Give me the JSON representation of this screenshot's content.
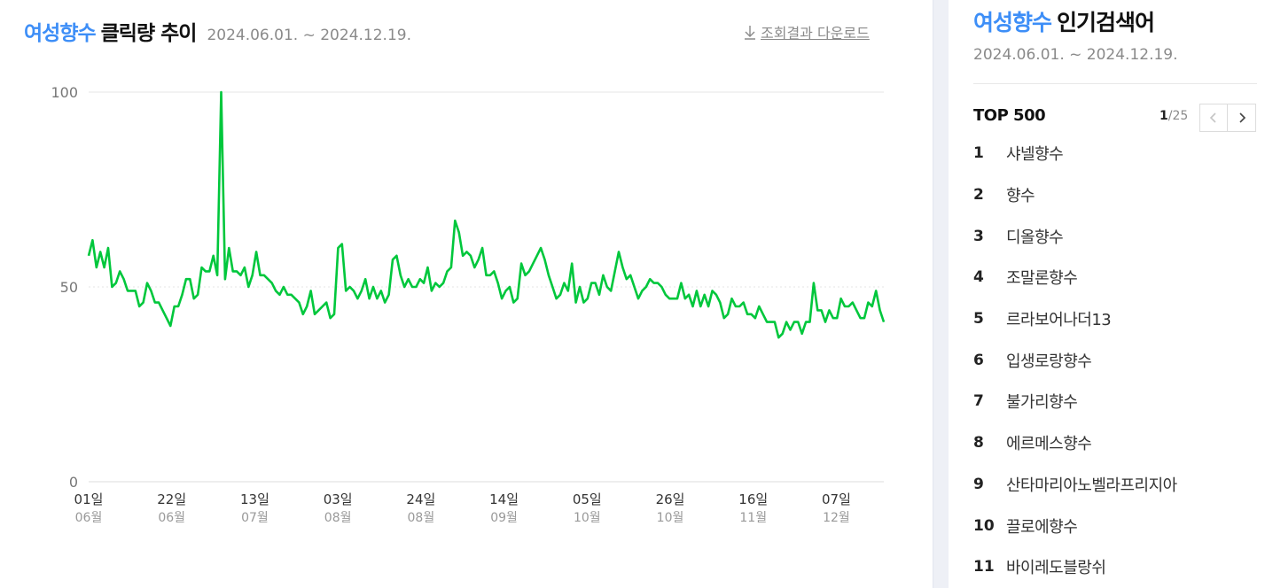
{
  "header": {
    "keyword": "여성향수",
    "title": "클릭량 추이",
    "period": "2024.06.01. ~ 2024.12.19.",
    "download": "조회결과 다운로드"
  },
  "colors": {
    "accent": "#3d8ef7",
    "line": "#00c73c"
  },
  "chart_data": {
    "type": "line",
    "ylim": [
      0,
      100
    ],
    "yticks": [
      0,
      50,
      100
    ],
    "grid": true,
    "x_range": [
      "2024-06-01",
      "2024-12-19"
    ],
    "x_ticks": [
      {
        "day": "01일",
        "month": "06월"
      },
      {
        "day": "22일",
        "month": "06월"
      },
      {
        "day": "13일",
        "month": "07월"
      },
      {
        "day": "03일",
        "month": "08월"
      },
      {
        "day": "24일",
        "month": "08월"
      },
      {
        "day": "14일",
        "month": "09월"
      },
      {
        "day": "05일",
        "month": "10월"
      },
      {
        "day": "26일",
        "month": "10월"
      },
      {
        "day": "16일",
        "month": "11월"
      },
      {
        "day": "07일",
        "month": "12월"
      }
    ],
    "series": [
      {
        "values": [
          58,
          62,
          55,
          59,
          55,
          60,
          50,
          51,
          54,
          52,
          49,
          49,
          49,
          45,
          46,
          51,
          49,
          46,
          46,
          44,
          42,
          40,
          45,
          45,
          48,
          52,
          52,
          47,
          48,
          55,
          54,
          54,
          58,
          53,
          100,
          52,
          60,
          54,
          54,
          53,
          55,
          50,
          53,
          59,
          53,
          53,
          52,
          51,
          49,
          48,
          50,
          48,
          48,
          47,
          46,
          43,
          45,
          49,
          43,
          44,
          45,
          46,
          42,
          43,
          60,
          61,
          49,
          50,
          49,
          47,
          49,
          52,
          47,
          50,
          47,
          49,
          46,
          48,
          57,
          58,
          53,
          50,
          52,
          50,
          50,
          52,
          51,
          55,
          49,
          51,
          50,
          51,
          54,
          55,
          67,
          64,
          58,
          59,
          58,
          55,
          57,
          60,
          53,
          53,
          54,
          51,
          47,
          49,
          50,
          46,
          47,
          56,
          53,
          54,
          56,
          58,
          60,
          57,
          53,
          50,
          47,
          48,
          51,
          49,
          56,
          46,
          50,
          46,
          47,
          51,
          51,
          48,
          53,
          50,
          49,
          54,
          59,
          55,
          52,
          53,
          50,
          47,
          49,
          50,
          52,
          51,
          51,
          50,
          48,
          47,
          47,
          47,
          51,
          47,
          48,
          45,
          49,
          45,
          48,
          45,
          49,
          48,
          46,
          42,
          43,
          47,
          45,
          45,
          46,
          43,
          43,
          42,
          45,
          43,
          41,
          41,
          41,
          37,
          38,
          41,
          39,
          41,
          41,
          38,
          41,
          41,
          51,
          44,
          44,
          41,
          44,
          42,
          42,
          47,
          45,
          45,
          46,
          44,
          42,
          42,
          46,
          45,
          49,
          44,
          41
        ]
      }
    ]
  },
  "side": {
    "keyword": "여성향수",
    "title": "인기검색어",
    "period": "2024.06.01. ~ 2024.12.19.",
    "top_label": "TOP 500",
    "page_current": "1",
    "page_total": "/25",
    "rankings": [
      {
        "rank": "1",
        "keyword": "샤넬향수"
      },
      {
        "rank": "2",
        "keyword": "향수"
      },
      {
        "rank": "3",
        "keyword": "디올향수"
      },
      {
        "rank": "4",
        "keyword": "조말론향수"
      },
      {
        "rank": "5",
        "keyword": "르라보어나더13"
      },
      {
        "rank": "6",
        "keyword": "입생로랑향수"
      },
      {
        "rank": "7",
        "keyword": "불가리향수"
      },
      {
        "rank": "8",
        "keyword": "에르메스향수"
      },
      {
        "rank": "9",
        "keyword": "산타마리아노벨라프리지아"
      },
      {
        "rank": "10",
        "keyword": "끌로에향수"
      },
      {
        "rank": "11",
        "keyword": "바이레도블랑쉬"
      }
    ]
  }
}
